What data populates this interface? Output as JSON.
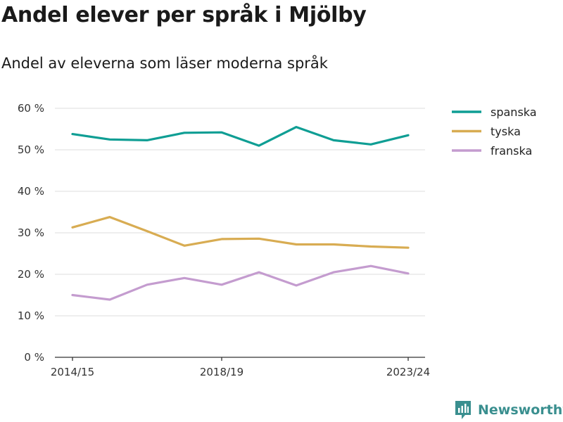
{
  "title": "Andel elever per språk i Mjölby",
  "subtitle": "Andel av eleverna som läser moderna språk",
  "brand": "Newsworthy",
  "chart_data": {
    "type": "line",
    "x": [
      "2014/15",
      "2015/16",
      "2016/17",
      "2017/18",
      "2018/19",
      "2019/20",
      "2020/21",
      "2021/22",
      "2022/23",
      "2023/24"
    ],
    "x_tick_labels": [
      "2014/15",
      "2018/19",
      "2023/24"
    ],
    "y_ticks": [
      0,
      10,
      20,
      30,
      40,
      50,
      60
    ],
    "y_tick_labels": [
      "0 %",
      "10 %",
      "20 %",
      "30 %",
      "40 %",
      "50 %",
      "60 %"
    ],
    "ylim": [
      0,
      60
    ],
    "grid": true,
    "legend_position": "right",
    "series": [
      {
        "name": "spanska",
        "color": "#0f9e94",
        "values": [
          53.8,
          52.5,
          52.3,
          54.1,
          54.2,
          51.0,
          55.5,
          52.3,
          51.3,
          53.5
        ]
      },
      {
        "name": "tyska",
        "color": "#d8ac52",
        "values": [
          31.3,
          33.8,
          30.4,
          26.9,
          28.5,
          28.6,
          27.2,
          27.2,
          26.7,
          26.4
        ]
      },
      {
        "name": "franska",
        "color": "#c49ccf",
        "values": [
          15.0,
          13.9,
          17.5,
          19.1,
          17.5,
          20.5,
          17.3,
          20.5,
          22.0,
          20.2
        ]
      }
    ]
  }
}
